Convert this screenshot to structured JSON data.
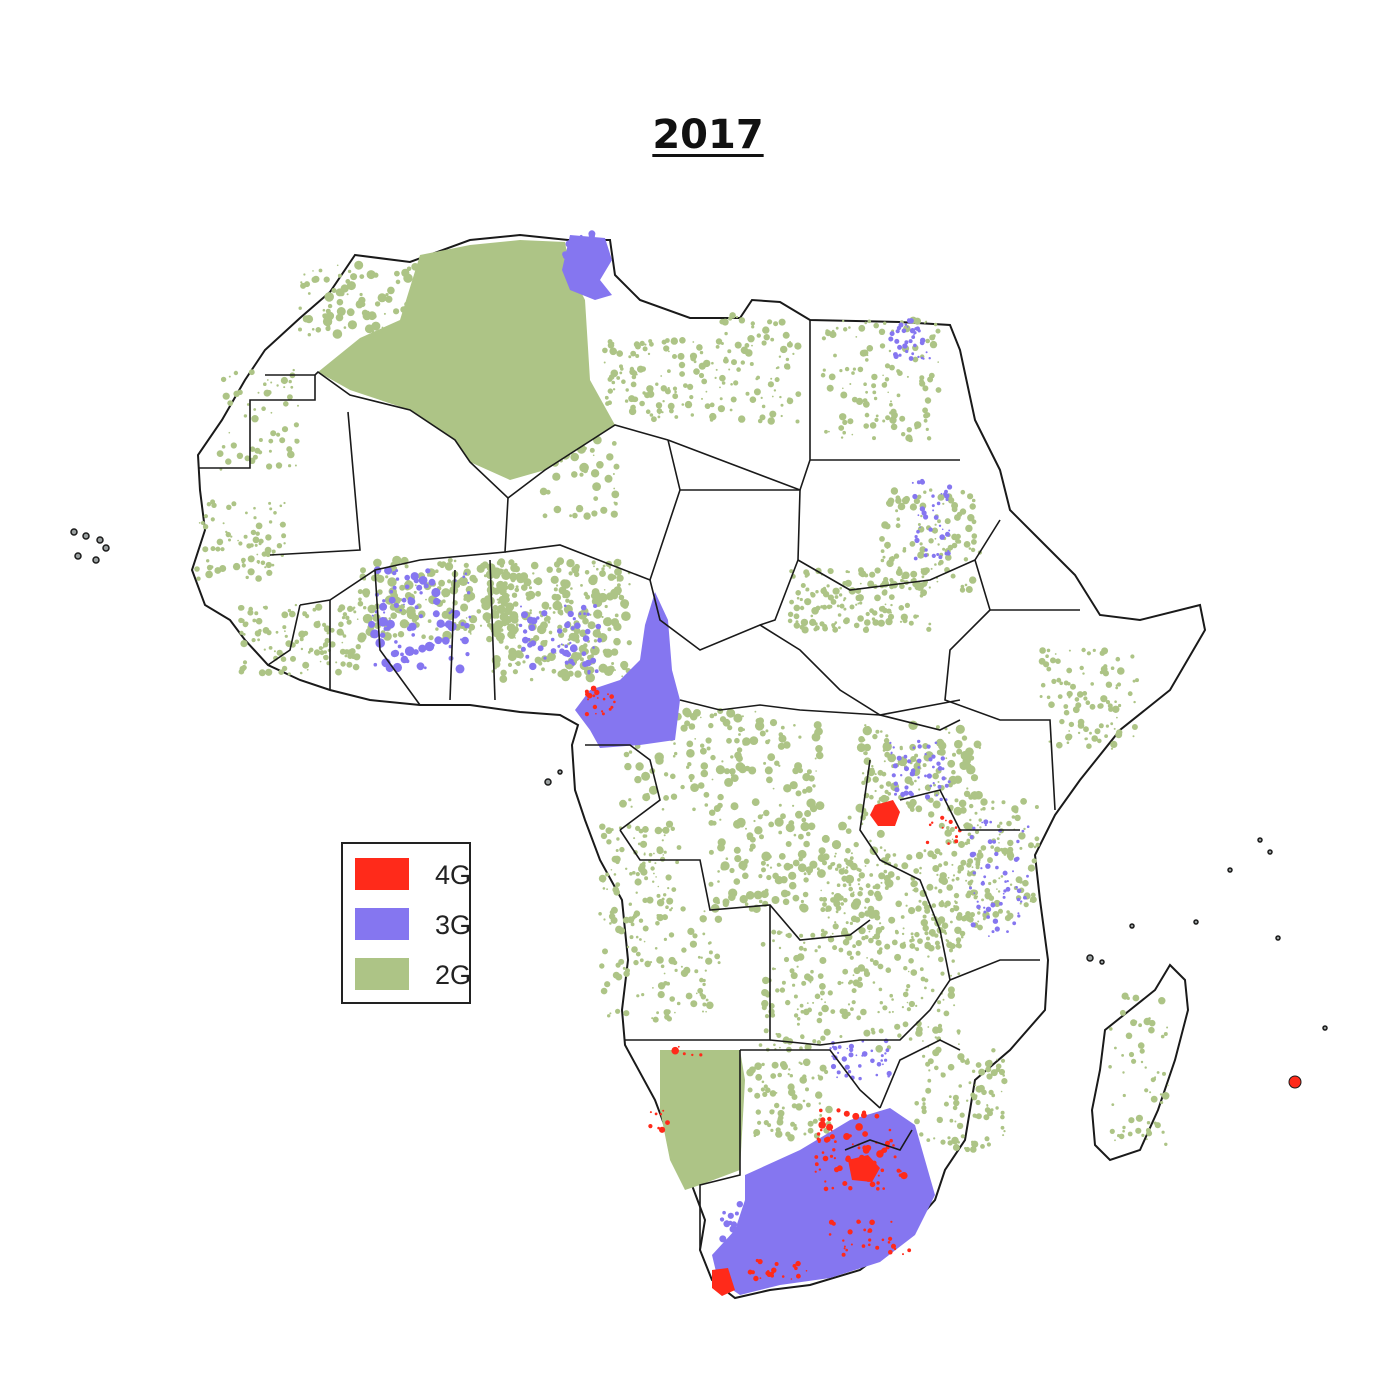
{
  "title": "2017",
  "colors": {
    "4G": "#ff2a1a",
    "3G": "#8576f0",
    "2G": "#adc486",
    "border": "#1a1a1a",
    "land": "#ffffff"
  },
  "legend": {
    "items": [
      {
        "label": "4G",
        "color": "#ff2a1a"
      },
      {
        "label": "3G",
        "color": "#8576f0"
      },
      {
        "label": "2G",
        "color": "#adc486"
      }
    ]
  }
}
